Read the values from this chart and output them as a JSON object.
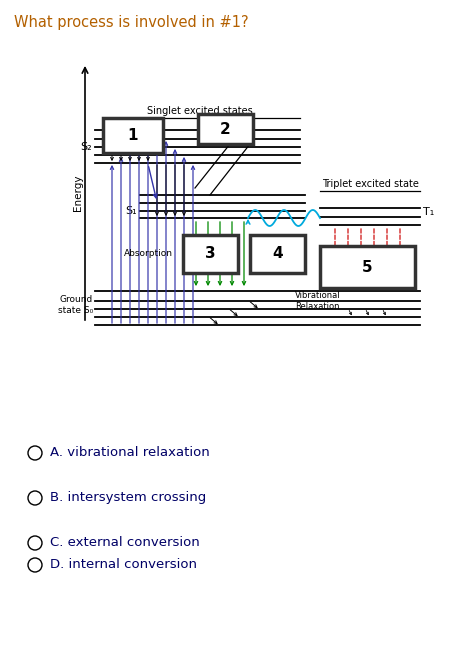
{
  "title": "What process is involved in #1?",
  "title_color": "#b36000",
  "bg_color": "#ffffff",
  "choices": [
    "A. vibrational relaxation",
    "B. intersystem crossing",
    "C. external conversion",
    "D. internal conversion"
  ],
  "choice_colors": [
    "#000080",
    "#000080",
    "#000080",
    "#000080"
  ],
  "diagram": {
    "singlet_label": "Singlet excited states",
    "triplet_label": "Triplet excited state",
    "ground_label": "Ground\nstate S₀",
    "energy_label": "Energy",
    "s2_label": "S₂",
    "s1_label": "S₁",
    "t1_label": "T₁",
    "absorption_label": "Absorption",
    "vib_relax_label": "Vibrational\nRelaxation",
    "blue_color": "#3333aa",
    "green_color": "#008800",
    "red_color": "#cc0000",
    "cyan_color": "#00aadd",
    "black_color": "#000000",
    "dark_color": "#333333"
  }
}
